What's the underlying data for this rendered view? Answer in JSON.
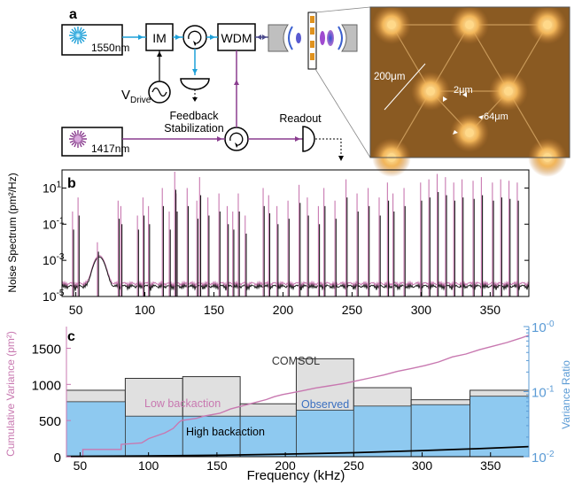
{
  "panel_a": {
    "label": "a",
    "laser1_label": "1550nm",
    "laser2_label": "1417nm",
    "im_label": "IM",
    "wdm_label": "WDM",
    "vdrive_main": "V",
    "vdrive_sub": "Drive",
    "feedback_line1": "Feedback",
    "feedback_line2": "Stabilization",
    "readout_label": "Readout",
    "dim_200": "200μm",
    "dim_2": "2μm",
    "dim_64": "64μm",
    "colors": {
      "laser1550": "#1ea0d8",
      "laser1417": "#8a3d8f",
      "chip": "#8a5a22",
      "chip_glow": "#f2b65a"
    }
  },
  "panel_b": {
    "label": "b",
    "ylabel": "Noise Spectrum (pm²/Hz)",
    "ytick_labels": [
      "10",
      "10",
      "10",
      "10"
    ],
    "ytick_exps": [
      "1",
      "-1",
      "-3",
      "-5"
    ],
    "xtick_labels": [
      "50",
      "100",
      "150",
      "200",
      "250",
      "300",
      "350"
    ]
  },
  "panel_c": {
    "label": "c",
    "ylabel_left": "Cumulative Variance (pm²)",
    "ylabel_right": "Variance Ratio",
    "xlabel": "Frequency (kHz)",
    "left_ticks": [
      "0",
      "500",
      "1000",
      "1500"
    ],
    "right_tick_labels": [
      "10",
      "10",
      "10"
    ],
    "right_tick_exps": [
      "-2",
      "-1",
      "-0"
    ],
    "xtick_labels": [
      "50",
      "100",
      "150",
      "200",
      "250",
      "300",
      "350"
    ],
    "ann_comsol": "COMSOL",
    "ann_low": "Low backaction",
    "ann_observed": "Observed",
    "ann_high": "High backaction"
  },
  "chart_data": [
    {
      "type": "line",
      "title": "",
      "xlabel": "",
      "ylabel": "Noise Spectrum (pm²/Hz)",
      "xlim": [
        40,
        378
      ],
      "ylim": [
        1e-05,
        100
      ],
      "y_scale": "log",
      "series": [
        {
          "color": "#c878b0",
          "peaks_x": [
            48,
            52,
            66,
            81,
            83,
            95,
            99,
            103,
            113,
            118,
            122,
            123,
            131,
            138,
            140,
            146,
            154,
            160,
            164,
            168,
            173,
            186,
            190,
            196,
            204,
            212,
            218,
            226,
            230,
            238,
            246,
            254,
            262,
            270,
            276,
            280,
            288,
            300,
            306,
            312,
            318,
            324,
            330,
            338,
            344,
            352,
            358,
            364,
            370
          ],
          "peaks_y": [
            0.5,
            3,
            0.01,
            2,
            1,
            0.3,
            3,
            1,
            10,
            0.5,
            80,
            5,
            10,
            2,
            40,
            3,
            5,
            1,
            0.5,
            5,
            0.3,
            10,
            4,
            1,
            2,
            15,
            3,
            1,
            10,
            2,
            30,
            5,
            10,
            3,
            20,
            5,
            10,
            20,
            30,
            60,
            40,
            20,
            30,
            25,
            40,
            20,
            30,
            25,
            20
          ]
        },
        {
          "color": "#1a1a1a",
          "peaks_x": [
            48,
            52,
            66,
            81,
            83,
            95,
            99,
            103,
            113,
            118,
            122,
            123,
            131,
            138,
            140,
            146,
            154,
            160,
            164,
            168,
            173,
            186,
            190,
            196,
            204,
            212,
            218,
            226,
            230,
            238,
            246,
            254,
            262,
            270,
            276,
            280,
            288,
            300,
            306,
            312,
            318,
            324,
            330,
            338,
            344,
            352,
            358,
            364,
            370
          ],
          "peaks_y": [
            0.05,
            0.3,
            0.003,
            0.2,
            0.1,
            0.05,
            0.3,
            0.1,
            1,
            0.05,
            8,
            0.5,
            1,
            0.2,
            4,
            0.3,
            0.5,
            0.1,
            0.05,
            0.5,
            0.03,
            1,
            0.4,
            0.1,
            0.2,
            1.5,
            0.3,
            0.1,
            1,
            0.2,
            3,
            0.5,
            1,
            0.3,
            2,
            0.5,
            1,
            2,
            3,
            6,
            4,
            2,
            3,
            2.5,
            4,
            2,
            3,
            2.5,
            2
          ]
        }
      ]
    },
    {
      "type": "bar",
      "title": "",
      "xlabel": "Frequency (kHz)",
      "ylabel": "Variance Ratio",
      "xlim": [
        40,
        378
      ],
      "ylim": [
        0.01,
        1
      ],
      "y_scale": "log",
      "bin_edges": [
        40,
        83,
        125,
        167,
        208,
        250,
        292,
        335,
        378
      ],
      "series": [
        {
          "name": "COMSOL",
          "values": [
            0.105,
            0.16,
            0.17,
            0.065,
            0.32,
            0.115,
            0.075,
            0.105
          ]
        },
        {
          "name": "Observed",
          "values": [
            0.07,
            0.042,
            0.042,
            0.042,
            0.052,
            0.06,
            0.063,
            0.085
          ]
        }
      ]
    },
    {
      "type": "line",
      "title": "",
      "xlabel": "Frequency (kHz)",
      "ylabel": "Cumulative Variance (pm²)",
      "xlim": [
        40,
        378
      ],
      "ylim": [
        0,
        1800
      ],
      "series": [
        {
          "name": "Low backaction",
          "x": [
            40,
            52,
            52,
            80,
            80,
            95,
            100,
            112,
            118,
            122,
            124,
            135,
            140,
            152,
            160,
            168,
            176,
            186,
            192,
            198,
            204,
            212,
            222,
            232,
            242,
            252,
            262,
            272,
            282,
            292,
            302,
            312,
            322,
            332,
            342,
            352,
            362,
            372,
            378
          ],
          "y": [
            0,
            0,
            100,
            100,
            170,
            190,
            250,
            330,
            390,
            470,
            500,
            530,
            560,
            600,
            660,
            700,
            740,
            790,
            830,
            860,
            880,
            910,
            950,
            980,
            1010,
            1050,
            1090,
            1130,
            1180,
            1220,
            1260,
            1310,
            1380,
            1420,
            1480,
            1530,
            1580,
            1640,
            1680
          ]
        },
        {
          "name": "High backaction",
          "x": [
            40,
            100,
            150,
            200,
            250,
            300,
            340,
            378
          ],
          "y": [
            5,
            10,
            20,
            35,
            55,
            85,
            110,
            140
          ]
        }
      ]
    }
  ]
}
